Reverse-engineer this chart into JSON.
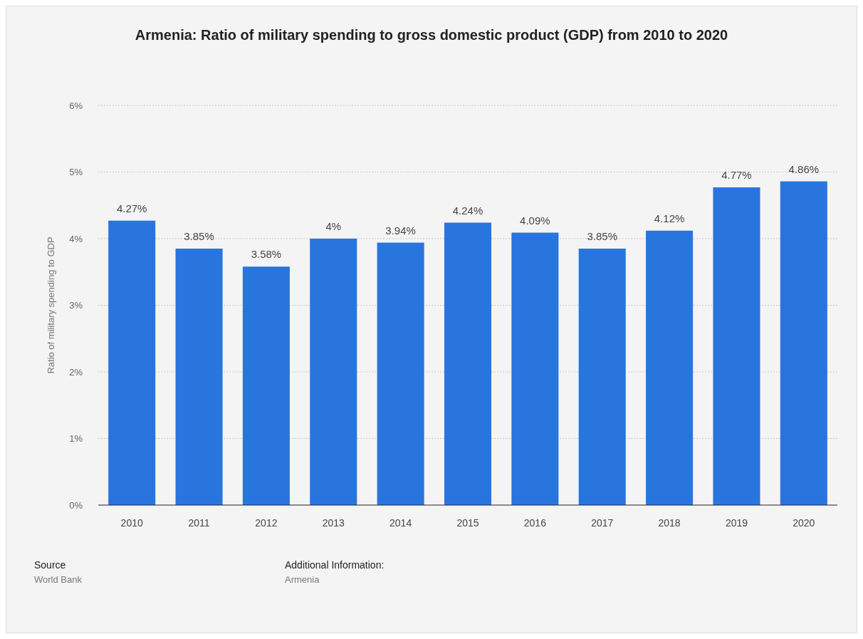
{
  "chart_data": {
    "type": "bar",
    "title": "Armenia: Ratio of military spending to gross domestic product (GDP) from 2010 to 2020",
    "ylabel": "Ratio of military spending to GDP",
    "categories": [
      "2010",
      "2011",
      "2012",
      "2013",
      "2014",
      "2015",
      "2016",
      "2017",
      "2018",
      "2019",
      "2020"
    ],
    "values": [
      4.27,
      3.85,
      3.58,
      4,
      3.94,
      4.24,
      4.09,
      3.85,
      4.12,
      4.77,
      4.86
    ],
    "value_labels": [
      "4.27%",
      "3.85%",
      "3.58%",
      "4%",
      "3.94%",
      "4.24%",
      "4.09%",
      "3.85%",
      "4.12%",
      "4.77%",
      "4.86%"
    ],
    "color": "#2875de",
    "ylim": [
      0,
      6
    ],
    "yticks": [
      {
        "value": 0,
        "label": "0%"
      },
      {
        "value": 1,
        "label": "1%"
      },
      {
        "value": 2,
        "label": "2%"
      },
      {
        "value": 3,
        "label": "3%"
      },
      {
        "value": 4,
        "label": "4%"
      },
      {
        "value": 5,
        "label": "5%"
      },
      {
        "value": 6,
        "label": "6%"
      }
    ],
    "grid": "y",
    "annotations": [
      "Source",
      "World Bank",
      "Additional Information:",
      "Armenia"
    ]
  }
}
